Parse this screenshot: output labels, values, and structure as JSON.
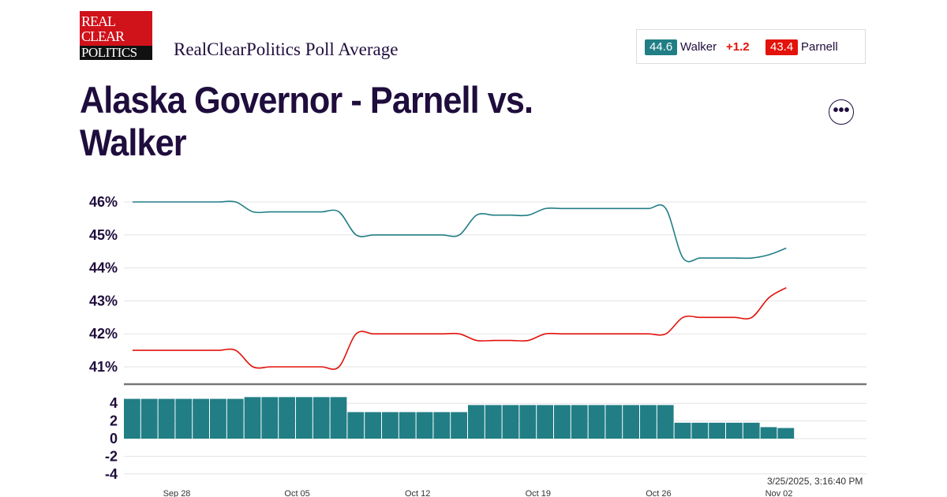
{
  "header": {
    "logo_text": [
      "REAL",
      "CLEAR",
      "POLITICS"
    ],
    "subtitle": "RealClearPolitics Poll Average",
    "title": "Alaska Governor - Parnell vs. Walker",
    "more_label": "•••"
  },
  "legend": {
    "walker_value": "44.6",
    "walker_name": "Walker",
    "walker_spread": "+1.2",
    "parnell_value": "43.4",
    "parnell_name": "Parnell"
  },
  "timestamp": "3/25/2025, 3:16:40 PM",
  "colors": {
    "walker": "#217e85",
    "parnell": "#e3120b",
    "spread_bar": "#217e85"
  },
  "chart_data": [
    {
      "type": "line",
      "ylim": [
        41,
        46
      ],
      "y_ticks": [
        "41%",
        "42%",
        "43%",
        "44%",
        "45%",
        "46%"
      ],
      "grid": true,
      "x_ticks": [
        "Sep 28",
        "Oct 05",
        "Oct 12",
        "Oct 19",
        "Oct 26",
        "Nov 02"
      ],
      "x": [
        "Sep 25",
        "Sep 26",
        "Sep 27",
        "Sep 28",
        "Sep 29",
        "Sep 30",
        "Oct 01",
        "Oct 02",
        "Oct 03",
        "Oct 04",
        "Oct 05",
        "Oct 06",
        "Oct 07",
        "Oct 08",
        "Oct 09",
        "Oct 10",
        "Oct 11",
        "Oct 12",
        "Oct 13",
        "Oct 14",
        "Oct 15",
        "Oct 16",
        "Oct 17",
        "Oct 18",
        "Oct 19",
        "Oct 20",
        "Oct 21",
        "Oct 22",
        "Oct 23",
        "Oct 24",
        "Oct 25",
        "Oct 26",
        "Oct 27",
        "Oct 28",
        "Oct 29",
        "Oct 30",
        "Oct 31",
        "Nov 01",
        "Nov 02"
      ],
      "series": [
        {
          "name": "Walker",
          "values": [
            46.0,
            46.0,
            46.0,
            46.0,
            46.0,
            46.0,
            46.0,
            45.7,
            45.7,
            45.7,
            45.7,
            45.7,
            45.7,
            45.0,
            45.0,
            45.0,
            45.0,
            45.0,
            45.0,
            45.0,
            45.6,
            45.6,
            45.6,
            45.6,
            45.8,
            45.8,
            45.8,
            45.8,
            45.8,
            45.8,
            45.8,
            45.8,
            44.3,
            44.3,
            44.3,
            44.3,
            44.3,
            44.4,
            44.6
          ]
        },
        {
          "name": "Parnell",
          "values": [
            41.5,
            41.5,
            41.5,
            41.5,
            41.5,
            41.5,
            41.5,
            41.0,
            41.0,
            41.0,
            41.0,
            41.0,
            41.0,
            42.0,
            42.0,
            42.0,
            42.0,
            42.0,
            42.0,
            42.0,
            41.8,
            41.8,
            41.8,
            41.8,
            42.0,
            42.0,
            42.0,
            42.0,
            42.0,
            42.0,
            42.0,
            42.0,
            42.5,
            42.5,
            42.5,
            42.5,
            42.5,
            43.1,
            43.4
          ]
        }
      ]
    },
    {
      "type": "bar",
      "ylim": [
        -4,
        4
      ],
      "y_ticks": [
        "-4",
        "-2",
        "0",
        "2",
        "4"
      ],
      "grid": true,
      "values": [
        4.5,
        4.5,
        4.5,
        4.5,
        4.5,
        4.5,
        4.5,
        4.7,
        4.7,
        4.7,
        4.7,
        4.7,
        4.7,
        3.0,
        3.0,
        3.0,
        3.0,
        3.0,
        3.0,
        3.0,
        3.8,
        3.8,
        3.8,
        3.8,
        3.8,
        3.8,
        3.8,
        3.8,
        3.8,
        3.8,
        3.8,
        3.8,
        1.8,
        1.8,
        1.8,
        1.8,
        1.8,
        1.3,
        1.2
      ]
    }
  ]
}
